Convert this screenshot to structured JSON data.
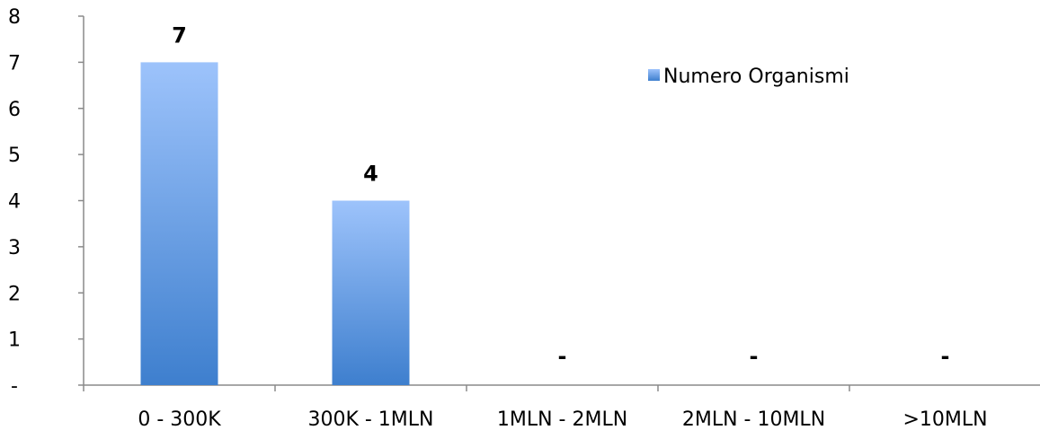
{
  "chart_data": {
    "type": "bar",
    "categories": [
      "0 - 300K",
      "300K - 1MLN",
      "1MLN - 2MLN",
      "2MLN - 10MLN",
      ">10MLN"
    ],
    "series": [
      {
        "name": "Numero Organismi",
        "values": [
          7,
          4,
          0,
          0,
          0
        ],
        "data_labels": [
          "7",
          "4",
          "-",
          "-",
          "-"
        ],
        "color_top": "#9dc3fb",
        "color_bottom": "#3e7fce"
      }
    ],
    "y_tick_labels": [
      "-",
      "1",
      "2",
      "3",
      "4",
      "5",
      "6",
      "7",
      "8"
    ],
    "ylim": [
      0,
      8
    ],
    "grid": false,
    "legend_position": "top-right",
    "title": "",
    "xlabel": "",
    "ylabel": ""
  }
}
